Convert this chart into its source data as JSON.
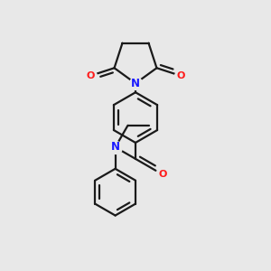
{
  "bg_color": "#e8e8e8",
  "bond_color": "#1a1a1a",
  "nitrogen_color": "#1a1aff",
  "oxygen_color": "#ff1a1a",
  "line_width": 1.6,
  "figsize": [
    3.0,
    3.0
  ],
  "dpi": 100,
  "xlim": [
    -2.5,
    2.5
  ],
  "ylim": [
    -4.2,
    3.2
  ]
}
